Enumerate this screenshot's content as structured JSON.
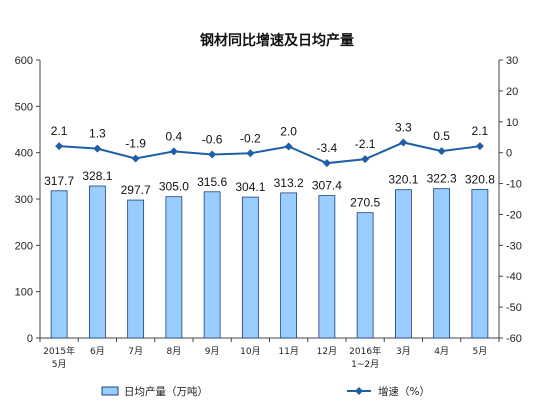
{
  "chart_data": {
    "type": "bar+line",
    "title": "钢材同比增速及日均产量",
    "categories": [
      [
        "2015年",
        "5月"
      ],
      [
        "6月"
      ],
      [
        "7月"
      ],
      [
        "8月"
      ],
      [
        "9月"
      ],
      [
        "10月"
      ],
      [
        "11月"
      ],
      [
        "12月"
      ],
      [
        "2016年",
        "1~2月"
      ],
      [
        "3月"
      ],
      [
        "4月"
      ],
      [
        "5月"
      ]
    ],
    "bar_series": {
      "name": "日均产量（万吨）",
      "axis": "left",
      "values": [
        317.7,
        328.1,
        297.7,
        305.0,
        315.6,
        304.1,
        313.2,
        307.4,
        270.5,
        320.1,
        322.3,
        320.8
      ],
      "labels": [
        "317.7",
        "328.1",
        "297.7",
        "305.0",
        "315.6",
        "304.1",
        "313.2",
        "307.4",
        "270.5",
        "320.1",
        "322.3",
        "320.8"
      ],
      "color": "#99CCFF",
      "edge_color": "#1F3F7F"
    },
    "line_series": {
      "name": "增速（%）",
      "axis": "right",
      "values": [
        2.1,
        1.3,
        -1.9,
        0.4,
        -0.6,
        -0.2,
        2.0,
        -3.4,
        -2.1,
        3.3,
        0.5,
        2.1
      ],
      "labels": [
        "2.1",
        "1.3",
        "-1.9",
        "0.4",
        "-0.6",
        "-0.2",
        "2.0",
        "-3.4",
        "-2.1",
        "3.3",
        "0.5",
        "2.1"
      ],
      "color": "#1F5FA8"
    },
    "left_axis": {
      "ylim": [
        0,
        600
      ],
      "ticks": [
        "0",
        "100",
        "200",
        "300",
        "400",
        "500",
        "600"
      ]
    },
    "right_axis": {
      "ylim": [
        -60,
        30
      ],
      "ticks": [
        "-60",
        "-50",
        "-40",
        "-30",
        "-20",
        "-10",
        "0",
        "10",
        "20",
        "30"
      ]
    },
    "grid": false,
    "legend_position": "bottom"
  }
}
